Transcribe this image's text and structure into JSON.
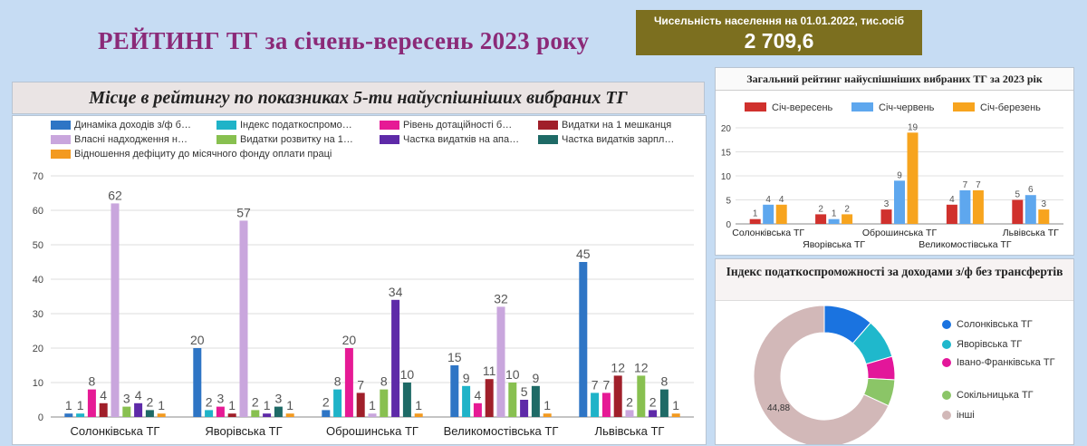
{
  "page": {
    "title": "РЕЙТИНГ  ТГ за січень-вересень 2023 року",
    "population_label": "Чисельність населення на 01.01.2022, тис.осіб",
    "population_value": "2 709,6"
  },
  "colors": {
    "background": "#c6dcf3",
    "title": "#8b2a78",
    "population_box": "#7c6f1f"
  },
  "chart_data": [
    {
      "type": "bar",
      "title": "Місце в рейтингу по показниках 5-ти найуспішніших вибраних ТГ",
      "categories": [
        "Солонківська ТГ",
        "Яворівська ТГ",
        "Оброшинська ТГ",
        "Великомостівська ТГ",
        "Львівська ТГ"
      ],
      "ylim": [
        0,
        70
      ],
      "yticks": [
        0,
        10,
        20,
        30,
        40,
        50,
        60,
        70
      ],
      "grid": true,
      "legend_position": "top",
      "series": [
        {
          "name": "Динаміка доходів з/ф б…",
          "color": "#2e75c5",
          "values": [
            1,
            20,
            2,
            15,
            45
          ]
        },
        {
          "name": "Індекс податкоспромо…",
          "color": "#1fb3c8",
          "values": [
            1,
            2,
            8,
            9,
            7
          ]
        },
        {
          "name": "Рівень дотаційності б…",
          "color": "#e61a95",
          "values": [
            8,
            3,
            20,
            4,
            7
          ]
        },
        {
          "name": "Видатки на 1 мешканця",
          "color": "#a01f2a",
          "values": [
            4,
            1,
            7,
            11,
            12
          ]
        },
        {
          "name": "Власні надходження н…",
          "color": "#c9a6dd",
          "values": [
            62,
            57,
            1,
            32,
            2
          ]
        },
        {
          "name": "Видатки розвитку на 1…",
          "color": "#88c050",
          "values": [
            3,
            2,
            8,
            10,
            12
          ]
        },
        {
          "name": "Частка видатків на апа…",
          "color": "#5e2aa8",
          "values": [
            4,
            1,
            34,
            5,
            2
          ]
        },
        {
          "name": "Частка видатків зарпл…",
          "color": "#1e6a66",
          "values": [
            2,
            3,
            10,
            9,
            8
          ]
        },
        {
          "name": "Відношення дефіциту до місячного фонду оплати праці",
          "color": "#f39a20",
          "values": [
            1,
            1,
            1,
            1,
            1
          ]
        }
      ]
    },
    {
      "type": "bar",
      "title": "Загальний рейтинг найуспішніших вибраних ТГ за 2023 рік",
      "categories": [
        "Солонківська ТГ",
        "Яворівська ТГ",
        "Оброшинська ТГ",
        "Великомостівська ТГ",
        "Львівська ТГ"
      ],
      "ylim": [
        0,
        20
      ],
      "yticks": [
        0,
        5,
        10,
        15,
        20
      ],
      "grid": true,
      "legend_position": "top",
      "series": [
        {
          "name": "Січ-вересень",
          "color": "#d0312d",
          "values": [
            1,
            2,
            3,
            4,
            5
          ]
        },
        {
          "name": "Січ-червень",
          "color": "#5ea7ee",
          "values": [
            4,
            1,
            9,
            7,
            6
          ]
        },
        {
          "name": "Січ-березень",
          "color": "#f7a41e",
          "values": [
            4,
            2,
            19,
            7,
            3
          ]
        }
      ]
    },
    {
      "type": "pie",
      "title": "Індекс податкоспроможності за доходами з/ф без трансфертів",
      "legend_position": "right",
      "slices": [
        {
          "name": "Солонківська ТГ",
          "color": "#1a73e0",
          "value": 7.5
        },
        {
          "name": "Яворівська ТГ",
          "color": "#1fb8cc",
          "value": 6.0
        },
        {
          "name": "Івано-Франківська ТГ",
          "color": "#e3169a",
          "value": 3.5
        },
        {
          "name": "Сокільницька ТГ",
          "color": "#8bc567",
          "value": 4.0
        },
        {
          "name": "інші",
          "color": "#d2b8b8",
          "value": 44.88
        }
      ],
      "labels": [
        "44,88"
      ]
    }
  ]
}
